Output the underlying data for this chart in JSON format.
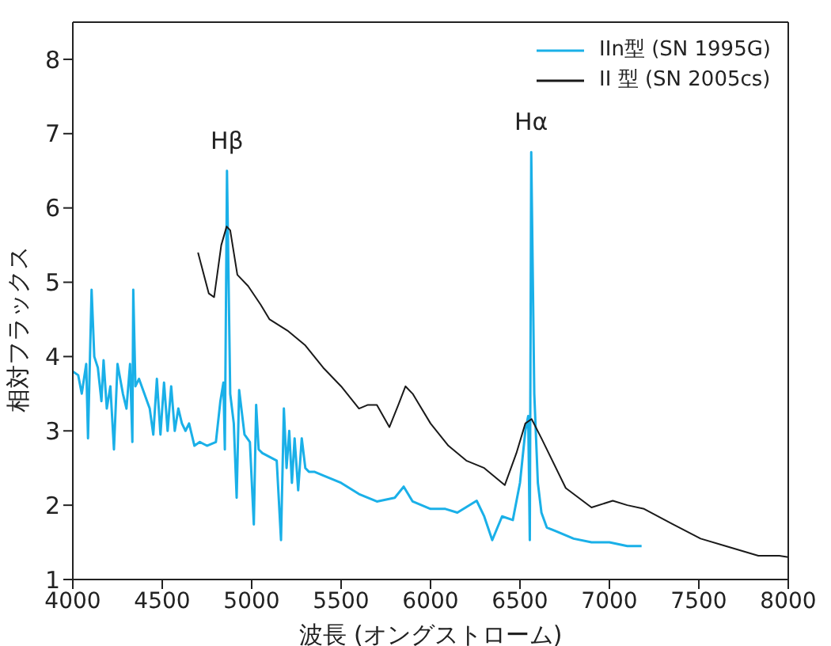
{
  "chart_data": {
    "type": "line",
    "xlabel": "波長 (オングストローム)",
    "ylabel": "相対フラックス",
    "xlim": [
      4000,
      8000
    ],
    "xticks": [
      4000,
      4500,
      5000,
      5500,
      6000,
      6500,
      7000,
      7500,
      8000
    ],
    "ylim": [
      1,
      8.5
    ],
    "yticks": [
      1,
      2,
      3,
      4,
      5,
      6,
      7,
      8
    ],
    "legend": "top right",
    "grid": false,
    "annotations": [
      {
        "text": "Hβ",
        "x": 4862,
        "y": 6.5
      },
      {
        "text": "Hα",
        "x": 6563,
        "y": 6.75
      }
    ],
    "series": [
      {
        "name": "IIn型 (SN 1995G)",
        "color": "#1ab0e8",
        "x": [
          4000,
          4030,
          4050,
          4075,
          4085,
          4105,
          4120,
          4140,
          4160,
          4172,
          4190,
          4210,
          4230,
          4250,
          4280,
          4300,
          4320,
          4333,
          4338,
          4350,
          4370,
          4400,
          4430,
          4450,
          4470,
          4490,
          4510,
          4530,
          4550,
          4570,
          4590,
          4610,
          4630,
          4650,
          4680,
          4710,
          4750,
          4800,
          4825,
          4842,
          4850,
          4862,
          4880,
          4900,
          4916,
          4930,
          4960,
          4990,
          5012,
          5025,
          5039,
          5060,
          5100,
          5140,
          5164,
          5180,
          5195,
          5210,
          5225,
          5240,
          5260,
          5280,
          5300,
          5320,
          5350,
          5400,
          5500,
          5600,
          5700,
          5800,
          5850,
          5900,
          6000,
          6083,
          6150,
          6258,
          6300,
          6345,
          6400,
          6460,
          6500,
          6530,
          6546,
          6555,
          6563,
          6580,
          6600,
          6620,
          6650,
          6700,
          6800,
          6900,
          7000,
          7100,
          7180
        ],
        "values": [
          3.8,
          3.75,
          3.5,
          3.9,
          2.9,
          4.9,
          4.0,
          3.85,
          3.4,
          3.95,
          3.3,
          3.6,
          2.75,
          3.9,
          3.5,
          3.3,
          3.9,
          2.85,
          4.9,
          3.6,
          3.7,
          3.5,
          3.3,
          2.95,
          3.7,
          2.95,
          3.65,
          3.0,
          3.6,
          3.0,
          3.3,
          3.1,
          3.0,
          3.1,
          2.8,
          2.85,
          2.8,
          2.85,
          3.4,
          3.65,
          2.75,
          6.5,
          3.5,
          3.1,
          2.1,
          3.55,
          2.95,
          2.85,
          1.74,
          3.35,
          2.75,
          2.7,
          2.65,
          2.6,
          1.53,
          3.3,
          2.5,
          3.0,
          2.3,
          2.9,
          2.2,
          2.9,
          2.5,
          2.45,
          2.45,
          2.4,
          2.3,
          2.15,
          2.05,
          2.1,
          2.25,
          2.05,
          1.95,
          1.95,
          1.9,
          2.06,
          1.85,
          1.53,
          1.85,
          1.8,
          2.3,
          3.0,
          3.2,
          1.53,
          6.75,
          3.5,
          2.3,
          1.9,
          1.7,
          1.65,
          1.55,
          1.5,
          1.5,
          1.45,
          1.45
        ]
      },
      {
        "name": "II 型 (SN 2005cs)",
        "color": "#1a1a1a",
        "x": [
          4700,
          4760,
          4790,
          4830,
          4860,
          4880,
          4920,
          4980,
          5050,
          5100,
          5200,
          5300,
          5400,
          5500,
          5600,
          5650,
          5700,
          5770,
          5820,
          5860,
          5900,
          6000,
          6100,
          6200,
          6300,
          6415,
          6480,
          6530,
          6565,
          6620,
          6756,
          6900,
          7019,
          7100,
          7194,
          7350,
          7510,
          7650,
          7833,
          7950,
          8000
        ],
        "values": [
          5.4,
          4.85,
          4.8,
          5.5,
          5.75,
          5.7,
          5.1,
          4.95,
          4.7,
          4.5,
          4.35,
          4.15,
          3.85,
          3.6,
          3.3,
          3.35,
          3.35,
          3.05,
          3.35,
          3.6,
          3.5,
          3.1,
          2.8,
          2.6,
          2.5,
          2.27,
          2.7,
          3.1,
          3.16,
          2.9,
          2.23,
          1.97,
          2.06,
          2.0,
          1.95,
          1.75,
          1.55,
          1.45,
          1.32,
          1.32,
          1.3
        ]
      }
    ]
  }
}
